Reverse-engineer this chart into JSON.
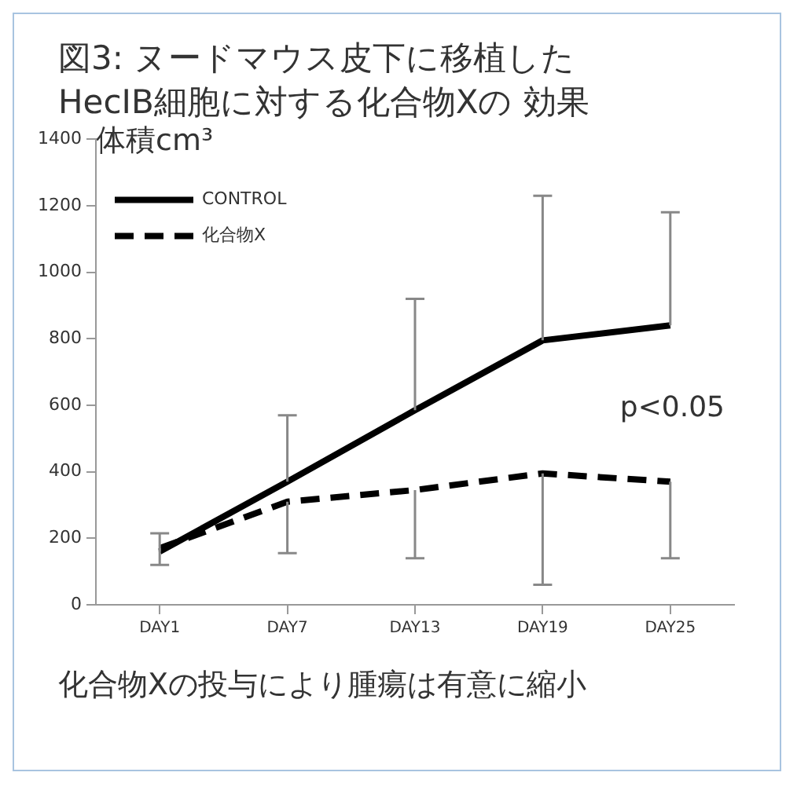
{
  "chart_data": {
    "type": "line",
    "title": "図3: ヌードマウス皮下に移植したHecIB細胞に対する化合物Xの 効果",
    "ylabel": "体積cm³",
    "categories": [
      "DAY1",
      "DAY7",
      "DAY13",
      "DAY19",
      "DAY25"
    ],
    "series": [
      {
        "name": "CONTROL",
        "color": "#000000",
        "line_style": "solid",
        "values": [
          160,
          370,
          585,
          795,
          840
        ],
        "errors": [
          [
            160,
            215
          ],
          [
            370,
            570
          ],
          [
            585,
            920
          ],
          [
            795,
            1230
          ],
          [
            840,
            1180
          ]
        ]
      },
      {
        "name": "化合物X",
        "color": "#000000",
        "line_style": "dashed",
        "values": [
          170,
          310,
          345,
          395,
          370
        ],
        "errors": [
          [
            120,
            170
          ],
          [
            155,
            310
          ],
          [
            140,
            345
          ],
          [
            60,
            395
          ],
          [
            140,
            370
          ]
        ]
      }
    ],
    "ylim": [
      0,
      1400
    ],
    "yticks": [
      0,
      200,
      400,
      600,
      800,
      1000,
      1200,
      1400
    ],
    "grid": false,
    "legend": "top left",
    "marker": "none",
    "annotations": [
      "p<0.05",
      "化合物Xの投与により腫瘍は有意に縮小"
    ]
  }
}
